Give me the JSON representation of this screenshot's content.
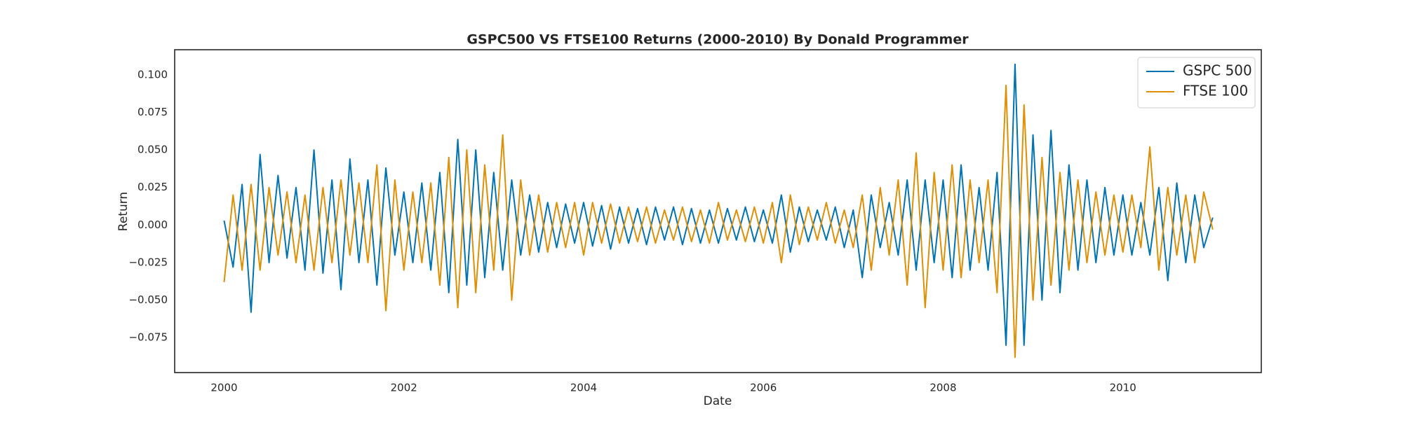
{
  "chart_data": {
    "type": "line",
    "title": "GSPC500 VS FTSE100 Returns (2000-2010) By Donald Programmer",
    "x_label": "Date",
    "y_label": "Return",
    "xlim": [
      1999.45,
      2011.54
    ],
    "ylim": [
      -0.0982,
      0.1167
    ],
    "xticks": [
      2000,
      2002,
      2004,
      2006,
      2008,
      2010
    ],
    "yticks": [
      {
        "value": -0.075,
        "label": "−0.075"
      },
      {
        "value": -0.05,
        "label": "−0.050"
      },
      {
        "value": -0.025,
        "label": "−0.025"
      },
      {
        "value": 0,
        "label": "0.000"
      },
      {
        "value": 0.025,
        "label": "0.025"
      },
      {
        "value": 0.05,
        "label": "0.050"
      },
      {
        "value": 0.075,
        "label": "0.075"
      },
      {
        "value": 0.1,
        "label": "0.100"
      }
    ],
    "grid": false,
    "legend": "upper right",
    "x": [
      2000.0,
      2000.1,
      2000.2,
      2000.3,
      2000.4,
      2000.5,
      2000.6,
      2000.7,
      2000.8,
      2000.9,
      2001.0,
      2001.1,
      2001.2,
      2001.3,
      2001.4,
      2001.5,
      2001.6,
      2001.7,
      2001.8,
      2001.9,
      2002.0,
      2002.1,
      2002.2,
      2002.3,
      2002.4,
      2002.5,
      2002.6,
      2002.7,
      2002.8,
      2002.9,
      2003.0,
      2003.1,
      2003.2,
      2003.3,
      2003.4,
      2003.5,
      2003.6,
      2003.7,
      2003.8,
      2003.9,
      2004.0,
      2004.1,
      2004.2,
      2004.3,
      2004.4,
      2004.5,
      2004.6,
      2004.7,
      2004.8,
      2004.9,
      2005.0,
      2005.1,
      2005.2,
      2005.3,
      2005.4,
      2005.5,
      2005.6,
      2005.7,
      2005.8,
      2005.9,
      2006.0,
      2006.1,
      2006.2,
      2006.3,
      2006.4,
      2006.5,
      2006.6,
      2006.7,
      2006.8,
      2006.9,
      2007.0,
      2007.1,
      2007.2,
      2007.3,
      2007.4,
      2007.5,
      2007.6,
      2007.7,
      2007.8,
      2007.9,
      2008.0,
      2008.1,
      2008.2,
      2008.3,
      2008.4,
      2008.5,
      2008.6,
      2008.7,
      2008.8,
      2008.9,
      2009.0,
      2009.1,
      2009.2,
      2009.3,
      2009.4,
      2009.5,
      2009.6,
      2009.7,
      2009.8,
      2009.9,
      2010.0,
      2010.1,
      2010.2,
      2010.3,
      2010.4,
      2010.5,
      2010.6,
      2010.7,
      2010.8,
      2010.9,
      2011.0
    ],
    "series": [
      {
        "name": "GSPC 500",
        "color": "#0173b2",
        "values": [
          0.003,
          -0.028,
          0.027,
          -0.058,
          0.047,
          -0.025,
          0.033,
          -0.022,
          0.025,
          -0.03,
          0.05,
          -0.032,
          0.03,
          -0.043,
          0.044,
          -0.025,
          0.03,
          -0.04,
          0.038,
          -0.02,
          0.022,
          -0.025,
          0.028,
          -0.03,
          0.035,
          -0.045,
          0.057,
          -0.04,
          0.05,
          -0.035,
          0.035,
          -0.03,
          0.03,
          -0.02,
          0.02,
          -0.018,
          0.015,
          -0.015,
          0.014,
          -0.012,
          0.015,
          -0.014,
          0.013,
          -0.016,
          0.012,
          -0.012,
          0.011,
          -0.013,
          0.012,
          -0.01,
          0.012,
          -0.013,
          0.011,
          -0.012,
          0.01,
          -0.012,
          0.011,
          -0.01,
          0.012,
          -0.011,
          0.01,
          -0.012,
          0.02,
          -0.018,
          0.012,
          -0.011,
          0.01,
          -0.01,
          0.012,
          -0.015,
          0.01,
          -0.035,
          0.02,
          -0.015,
          0.015,
          -0.02,
          0.03,
          -0.03,
          0.03,
          -0.025,
          0.03,
          -0.035,
          0.04,
          -0.03,
          0.025,
          -0.03,
          0.035,
          -0.08,
          0.107,
          -0.08,
          0.06,
          -0.05,
          0.063,
          -0.045,
          0.04,
          -0.03,
          0.03,
          -0.025,
          0.025,
          -0.02,
          0.02,
          -0.02,
          0.015,
          -0.02,
          0.025,
          -0.037,
          0.028,
          -0.025,
          0.02,
          -0.015,
          0.005
        ]
      },
      {
        "name": "FTSE 100",
        "color": "#de8f05",
        "values": [
          -0.038,
          0.02,
          -0.03,
          0.027,
          -0.03,
          0.025,
          -0.02,
          0.022,
          -0.025,
          0.02,
          -0.03,
          0.025,
          -0.025,
          0.03,
          -0.02,
          0.028,
          -0.025,
          0.04,
          -0.057,
          0.03,
          -0.03,
          0.022,
          -0.025,
          0.028,
          -0.04,
          0.045,
          -0.055,
          0.05,
          -0.045,
          0.04,
          -0.03,
          0.06,
          -0.05,
          0.03,
          -0.02,
          0.02,
          -0.018,
          0.015,
          -0.015,
          0.015,
          -0.02,
          0.015,
          -0.012,
          0.014,
          -0.012,
          0.012,
          -0.011,
          0.012,
          -0.012,
          0.01,
          -0.01,
          0.012,
          -0.011,
          0.01,
          -0.012,
          0.015,
          -0.01,
          0.01,
          -0.011,
          0.012,
          -0.012,
          0.015,
          -0.025,
          0.02,
          -0.013,
          0.012,
          -0.01,
          0.015,
          -0.012,
          0.01,
          -0.015,
          0.02,
          -0.03,
          0.025,
          -0.02,
          0.03,
          -0.04,
          0.048,
          -0.055,
          0.035,
          -0.03,
          0.04,
          -0.035,
          0.03,
          -0.025,
          0.03,
          -0.045,
          0.093,
          -0.088,
          0.08,
          -0.05,
          0.045,
          -0.04,
          0.035,
          -0.03,
          0.03,
          -0.025,
          0.022,
          -0.02,
          0.02,
          -0.018,
          0.02,
          -0.015,
          0.052,
          -0.03,
          0.025,
          -0.02,
          0.02,
          -0.025,
          0.022,
          -0.003
        ]
      }
    ]
  }
}
